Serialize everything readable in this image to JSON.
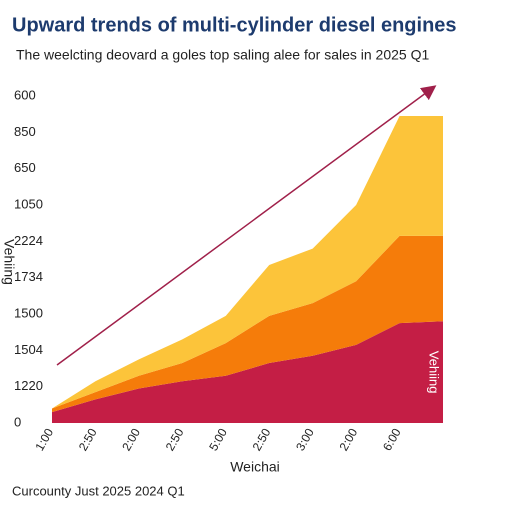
{
  "chart_data": {
    "type": "stacked-area",
    "title": "Upward trends of multi-cylinder diesel engines",
    "subtitle": "The weelcting deovard a goles top saling alee for sales in 2025 Q1",
    "x_label": "Weichai",
    "y_label": "Vehiing",
    "footer": "Curcounty Just 2025 2024 Q1",
    "categories": [
      "1:00",
      "2:50",
      "2:00",
      "2:50",
      "5:00",
      "2:50",
      "3:00",
      "2:00",
      "6:00",
      null
    ],
    "ylim": [
      0,
      9
    ],
    "yticks": [
      {
        "value": 0,
        "label": "0"
      },
      {
        "value": 1,
        "label": "1220"
      },
      {
        "value": 2,
        "label": "1504"
      },
      {
        "value": 3,
        "label": "1500"
      },
      {
        "value": 4,
        "label": "1734"
      },
      {
        "value": 5,
        "label": "2224"
      },
      {
        "value": 6,
        "label": "1050"
      },
      {
        "value": 7,
        "label": "650"
      },
      {
        "value": 8,
        "label": "850"
      },
      {
        "value": 9,
        "label": "600"
      }
    ],
    "series": [
      {
        "name": "Vehiing",
        "color": "#c41e45",
        "values": [
          0.3,
          0.65,
          0.95,
          1.15,
          1.3,
          1.65,
          1.85,
          2.15,
          2.75,
          2.8
        ]
      },
      {
        "color": "#f57c0a",
        "values": [
          0.1,
          0.2,
          0.35,
          0.5,
          0.9,
          1.3,
          1.45,
          1.75,
          2.4,
          2.35
        ]
      },
      {
        "color": "#fcc43a",
        "values": [
          0,
          0.3,
          0.45,
          0.65,
          0.75,
          1.4,
          1.5,
          2.1,
          3.3,
          3.3
        ]
      }
    ]
  }
}
